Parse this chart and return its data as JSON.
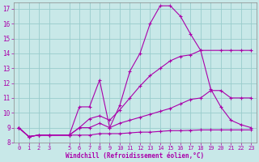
{
  "xlabel": "Windchill (Refroidissement éolien,°C)",
  "xlim": [
    -0.5,
    23.5
  ],
  "ylim": [
    8,
    17.4
  ],
  "xticks": [
    0,
    1,
    2,
    3,
    5,
    6,
    7,
    8,
    9,
    10,
    11,
    12,
    13,
    14,
    15,
    16,
    17,
    18,
    19,
    20,
    21,
    22,
    23
  ],
  "yticks": [
    8,
    9,
    10,
    11,
    12,
    13,
    14,
    15,
    16,
    17
  ],
  "bg_color": "#c8e8e8",
  "line_color": "#aa00aa",
  "grid_color": "#99cccc",
  "lines": [
    {
      "x": [
        0,
        1,
        2,
        3,
        5,
        6,
        7,
        8,
        9,
        10,
        11,
        12,
        13,
        14,
        15,
        16,
        17,
        18,
        20,
        21,
        22,
        23
      ],
      "y": [
        9.0,
        8.4,
        8.5,
        8.5,
        8.5,
        10.4,
        10.4,
        12.2,
        9.0,
        10.5,
        12.8,
        14.0,
        16.0,
        17.2,
        17.2,
        16.5,
        15.3,
        14.2,
        14.2,
        14.2,
        14.2,
        14.2
      ]
    },
    {
      "x": [
        0,
        1,
        2,
        3,
        5,
        6,
        7,
        8,
        9,
        10,
        11,
        12,
        13,
        14,
        15,
        16,
        17,
        18,
        19,
        20,
        21,
        22,
        23
      ],
      "y": [
        9.0,
        8.4,
        8.5,
        8.5,
        8.5,
        9.0,
        9.6,
        9.8,
        9.5,
        10.2,
        11.0,
        11.8,
        12.5,
        13.0,
        13.5,
        13.8,
        13.9,
        14.2,
        11.6,
        10.4,
        9.5,
        9.2,
        9.0
      ]
    },
    {
      "x": [
        0,
        1,
        2,
        3,
        5,
        6,
        7,
        8,
        9,
        10,
        11,
        12,
        13,
        14,
        15,
        16,
        17,
        18,
        19,
        20,
        21,
        22,
        23
      ],
      "y": [
        9.0,
        8.4,
        8.5,
        8.5,
        8.5,
        9.0,
        9.0,
        9.3,
        9.0,
        9.3,
        9.5,
        9.7,
        9.9,
        10.1,
        10.3,
        10.6,
        10.9,
        11.0,
        11.5,
        11.5,
        11.0,
        11.0,
        11.0
      ]
    },
    {
      "x": [
        0,
        1,
        2,
        3,
        5,
        6,
        7,
        8,
        9,
        10,
        11,
        12,
        13,
        14,
        15,
        16,
        17,
        18,
        19,
        20,
        21,
        22,
        23
      ],
      "y": [
        9.0,
        8.4,
        8.5,
        8.5,
        8.5,
        8.5,
        8.5,
        8.6,
        8.6,
        8.6,
        8.65,
        8.7,
        8.7,
        8.75,
        8.8,
        8.8,
        8.82,
        8.85,
        8.85,
        8.85,
        8.85,
        8.85,
        8.85
      ]
    }
  ]
}
